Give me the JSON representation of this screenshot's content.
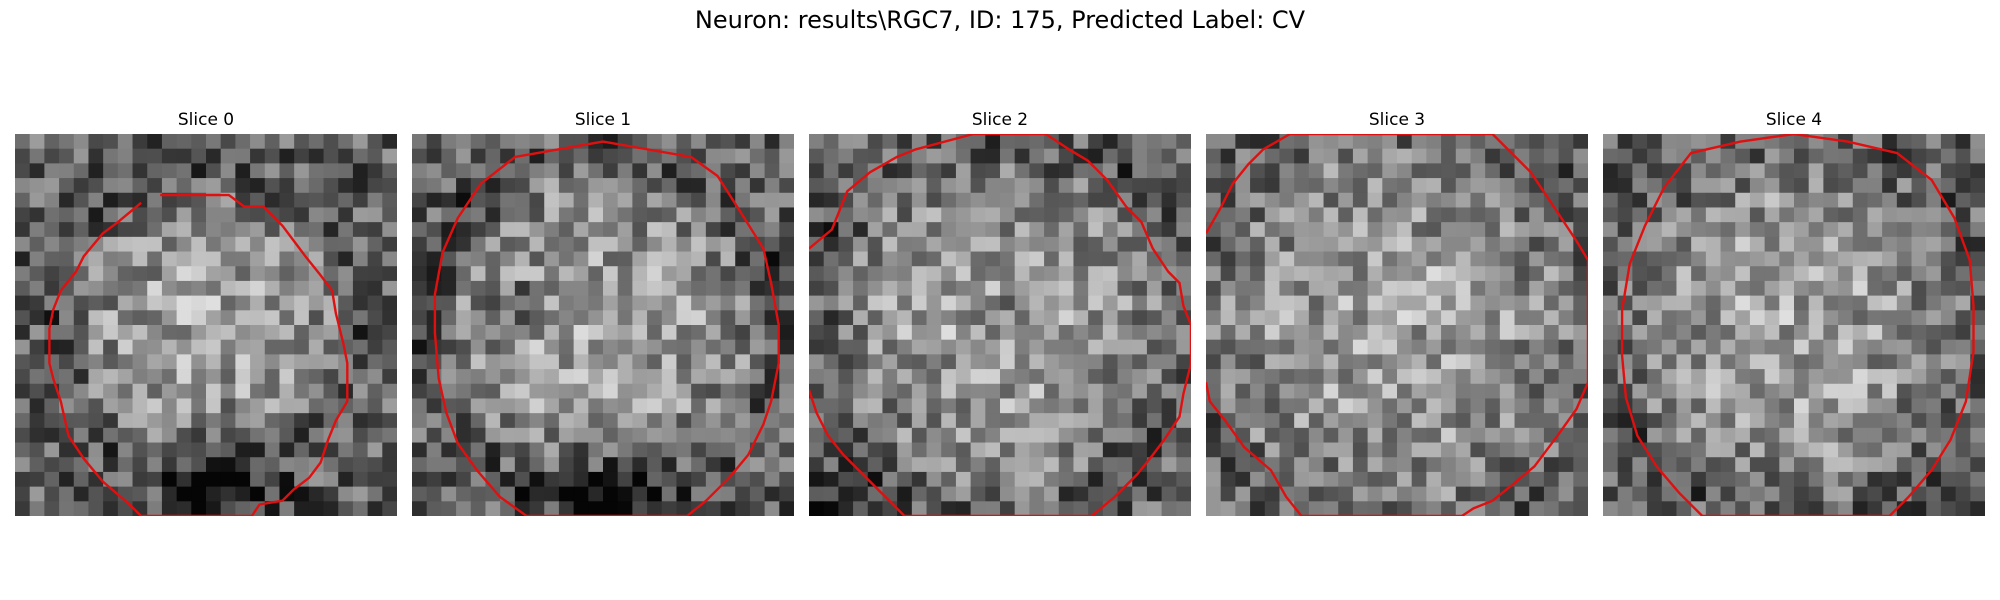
{
  "figure": {
    "title": "Neuron: results\\RGC7, ID: 175, Predicted Label: CV"
  },
  "contour_color": "#e01010",
  "colormap": "gray",
  "slices": [
    {
      "label": "Slice 0",
      "contour": [
        [
          0.38,
          0.16
        ],
        [
          0.56,
          0.16
        ],
        [
          0.6,
          0.19
        ],
        [
          0.65,
          0.19
        ],
        [
          0.7,
          0.24
        ],
        [
          0.73,
          0.28
        ],
        [
          0.76,
          0.32
        ],
        [
          0.8,
          0.37
        ],
        [
          0.83,
          0.41
        ],
        [
          0.84,
          0.47
        ],
        [
          0.86,
          0.55
        ],
        [
          0.87,
          0.6
        ],
        [
          0.87,
          0.7
        ],
        [
          0.84,
          0.75
        ],
        [
          0.82,
          0.8
        ],
        [
          0.8,
          0.86
        ],
        [
          0.77,
          0.9
        ],
        [
          0.73,
          0.93
        ],
        [
          0.7,
          0.96
        ],
        [
          0.64,
          0.97
        ],
        [
          0.62,
          1.0
        ],
        [
          0.33,
          1.0
        ],
        [
          0.3,
          0.97
        ],
        [
          0.23,
          0.91
        ],
        [
          0.18,
          0.85
        ],
        [
          0.14,
          0.79
        ],
        [
          0.12,
          0.7
        ],
        [
          0.1,
          0.64
        ],
        [
          0.09,
          0.6
        ],
        [
          0.09,
          0.51
        ],
        [
          0.1,
          0.46
        ],
        [
          0.12,
          0.41
        ],
        [
          0.16,
          0.36
        ],
        [
          0.18,
          0.32
        ],
        [
          0.23,
          0.26
        ],
        [
          0.27,
          0.23
        ],
        [
          0.33,
          0.18
        ]
      ],
      "closed": false
    },
    {
      "label": "Slice 1",
      "contour": [
        [
          0.27,
          0.06
        ],
        [
          0.5,
          0.02
        ],
        [
          0.73,
          0.06
        ],
        [
          0.8,
          0.11
        ],
        [
          0.87,
          0.22
        ],
        [
          0.92,
          0.3
        ],
        [
          0.94,
          0.39
        ],
        [
          0.96,
          0.5
        ],
        [
          0.96,
          0.6
        ],
        [
          0.94,
          0.7
        ],
        [
          0.92,
          0.76
        ],
        [
          0.88,
          0.84
        ],
        [
          0.83,
          0.9
        ],
        [
          0.77,
          0.96
        ],
        [
          0.72,
          1.0
        ],
        [
          0.3,
          1.0
        ],
        [
          0.23,
          0.95
        ],
        [
          0.17,
          0.88
        ],
        [
          0.12,
          0.81
        ],
        [
          0.09,
          0.73
        ],
        [
          0.07,
          0.64
        ],
        [
          0.06,
          0.52
        ],
        [
          0.06,
          0.42
        ],
        [
          0.08,
          0.31
        ],
        [
          0.12,
          0.22
        ],
        [
          0.18,
          0.13
        ]
      ],
      "closed": true
    },
    {
      "label": "Slice 2",
      "contour": [
        [
          0.0,
          0.3
        ],
        [
          0.06,
          0.25
        ],
        [
          0.1,
          0.15
        ],
        [
          0.16,
          0.1
        ],
        [
          0.23,
          0.06
        ],
        [
          0.28,
          0.04
        ],
        [
          0.43,
          0.0
        ],
        [
          0.62,
          0.0
        ],
        [
          0.68,
          0.04
        ],
        [
          0.73,
          0.07
        ],
        [
          0.78,
          0.12
        ],
        [
          0.83,
          0.19
        ],
        [
          0.87,
          0.23
        ],
        [
          0.9,
          0.3
        ],
        [
          0.94,
          0.36
        ],
        [
          0.97,
          0.39
        ],
        [
          0.98,
          0.45
        ],
        [
          1.0,
          0.5
        ],
        [
          1.0,
          0.6
        ],
        [
          0.98,
          0.68
        ],
        [
          0.97,
          0.74
        ],
        [
          0.93,
          0.8
        ],
        [
          0.9,
          0.84
        ],
        [
          0.86,
          0.89
        ],
        [
          0.8,
          0.95
        ],
        [
          0.74,
          1.0
        ],
        [
          0.25,
          1.0
        ],
        [
          0.19,
          0.94
        ],
        [
          0.14,
          0.89
        ],
        [
          0.09,
          0.84
        ],
        [
          0.05,
          0.79
        ],
        [
          0.02,
          0.73
        ],
        [
          0.0,
          0.67
        ]
      ],
      "closed": false
    },
    {
      "label": "Slice 3",
      "contour": [
        [
          0.0,
          0.26
        ],
        [
          0.04,
          0.19
        ],
        [
          0.07,
          0.13
        ],
        [
          0.11,
          0.08
        ],
        [
          0.15,
          0.04
        ],
        [
          0.22,
          0.0
        ],
        [
          0.75,
          0.0
        ],
        [
          0.8,
          0.05
        ],
        [
          0.85,
          0.1
        ],
        [
          0.89,
          0.16
        ],
        [
          0.93,
          0.22
        ],
        [
          0.97,
          0.28
        ],
        [
          1.0,
          0.33
        ],
        [
          1.0,
          0.65
        ],
        [
          0.97,
          0.72
        ],
        [
          0.92,
          0.79
        ],
        [
          0.86,
          0.87
        ],
        [
          0.8,
          0.92
        ],
        [
          0.75,
          0.96
        ],
        [
          0.7,
          0.98
        ],
        [
          0.67,
          1.0
        ],
        [
          0.25,
          1.0
        ],
        [
          0.21,
          0.95
        ],
        [
          0.17,
          0.88
        ],
        [
          0.1,
          0.82
        ],
        [
          0.05,
          0.75
        ],
        [
          0.01,
          0.7
        ],
        [
          0.0,
          0.65
        ]
      ],
      "closed": false
    },
    {
      "label": "Slice 4",
      "contour": [
        [
          0.23,
          0.05
        ],
        [
          0.36,
          0.02
        ],
        [
          0.5,
          0.0
        ],
        [
          0.64,
          0.02
        ],
        [
          0.77,
          0.05
        ],
        [
          0.86,
          0.12
        ],
        [
          0.92,
          0.22
        ],
        [
          0.96,
          0.33
        ],
        [
          0.97,
          0.45
        ],
        [
          0.97,
          0.57
        ],
        [
          0.95,
          0.7
        ],
        [
          0.91,
          0.8
        ],
        [
          0.86,
          0.88
        ],
        [
          0.8,
          0.95
        ],
        [
          0.75,
          1.0
        ],
        [
          0.26,
          1.0
        ],
        [
          0.2,
          0.94
        ],
        [
          0.14,
          0.87
        ],
        [
          0.09,
          0.79
        ],
        [
          0.06,
          0.69
        ],
        [
          0.05,
          0.58
        ],
        [
          0.05,
          0.46
        ],
        [
          0.07,
          0.34
        ],
        [
          0.11,
          0.24
        ],
        [
          0.16,
          0.14
        ]
      ],
      "closed": true
    }
  ]
}
